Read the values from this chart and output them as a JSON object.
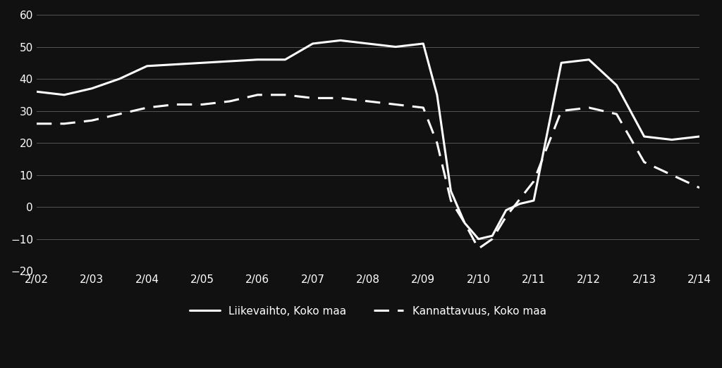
{
  "background_color": "#111111",
  "plot_bg_color": "#111111",
  "text_color": "#ffffff",
  "grid_color": "#555555",
  "line1_color": "#ffffff",
  "line2_color": "#ffffff",
  "ylim": [
    -20,
    60
  ],
  "yticks": [
    -20,
    -10,
    0,
    10,
    20,
    30,
    40,
    50,
    60
  ],
  "legend1": "Liikevaihto, Koko maa",
  "legend2": "Kannattavuus, Koko maa",
  "xtick_labels": [
    "2/02",
    "2/03",
    "2/04",
    "2/05",
    "2/06",
    "2/07",
    "2/08",
    "2/09",
    "2/10",
    "2/11",
    "2/12",
    "2/13",
    "2/14"
  ],
  "liikevaihto_x": [
    0,
    0.5,
    1,
    1.5,
    2,
    2.5,
    3,
    3.5,
    4,
    4.5,
    5,
    5.5,
    6,
    6.5,
    7,
    7.25,
    7.5,
    7.75,
    8,
    8.25,
    8.5,
    8.75,
    9,
    9.5,
    10,
    10.5,
    11,
    11.5,
    12
  ],
  "liikevaihto_y": [
    36,
    35,
    37,
    40,
    44,
    44.5,
    45,
    45.5,
    46,
    46,
    51,
    52,
    51,
    50,
    51,
    35,
    5,
    -5,
    -10,
    -9,
    -1,
    1,
    2,
    45,
    46,
    38,
    22,
    21,
    22
  ],
  "kannattavuus_x": [
    0,
    0.5,
    1,
    1.5,
    2,
    2.5,
    3,
    3.5,
    4,
    4.5,
    5,
    5.5,
    6,
    6.5,
    7,
    7.25,
    7.5,
    7.75,
    8,
    8.25,
    8.5,
    9,
    9.5,
    10,
    10.5,
    11,
    11.5,
    12
  ],
  "kannattavuus_y": [
    26,
    26,
    27,
    29,
    31,
    32,
    32,
    33,
    35,
    35,
    34,
    34,
    33,
    32,
    31,
    20,
    2,
    -5,
    -13,
    -10,
    -3,
    8,
    30,
    31,
    29,
    14,
    10,
    6
  ]
}
